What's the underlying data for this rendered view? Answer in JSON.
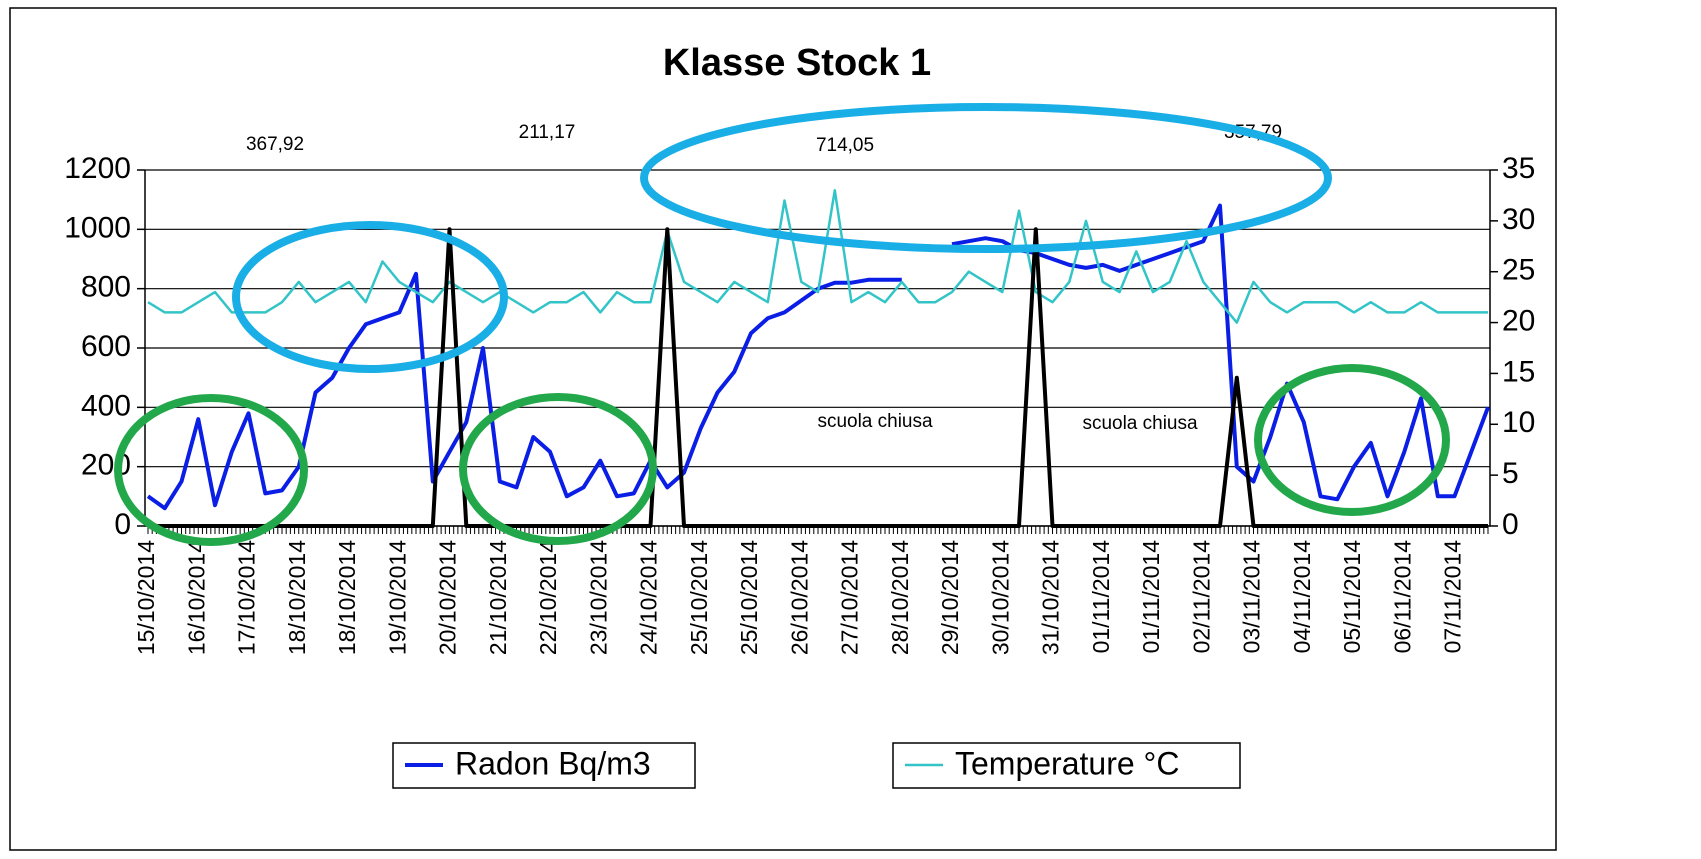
{
  "chart_data": {
    "type": "line",
    "title": "Klasse Stock 1",
    "categories": [
      "15/10/2014",
      null,
      null,
      "16/10/2014",
      null,
      null,
      "17/10/2014",
      null,
      null,
      "18/10/2014",
      null,
      null,
      "18/10/2014",
      null,
      null,
      "19/10/2014",
      null,
      null,
      "20/10/2014",
      null,
      null,
      "21/10/2014",
      null,
      null,
      "22/10/2014",
      null,
      null,
      "23/10/2014",
      null,
      null,
      "24/10/2014",
      null,
      null,
      "25/10/2014",
      null,
      null,
      "25/10/2014",
      null,
      null,
      "26/10/2014",
      null,
      null,
      "27/10/2014",
      null,
      null,
      "28/10/2014",
      null,
      null,
      "29/10/2014",
      null,
      null,
      "30/10/2014",
      null,
      null,
      "31/10/2014",
      null,
      null,
      "01/11/2014",
      null,
      null,
      "01/11/2014",
      null,
      null,
      "02/11/2014",
      null,
      null,
      "03/11/2014",
      null,
      null,
      "04/11/2014",
      null,
      null,
      "05/11/2014",
      null,
      null,
      "06/11/2014",
      null,
      null,
      "07/11/2014",
      null,
      null
    ],
    "series": [
      {
        "name": "Radon Bq/m3",
        "color": "#0a1ee6",
        "values": [
          100,
          60,
          150,
          360,
          70,
          250,
          380,
          110,
          120,
          200,
          450,
          500,
          600,
          680,
          700,
          720,
          850,
          150,
          250,
          350,
          600,
          150,
          130,
          300,
          250,
          100,
          130,
          220,
          100,
          110,
          220,
          130,
          180,
          330,
          450,
          520,
          650,
          700,
          720,
          760,
          800,
          820,
          820,
          830,
          830,
          830,
          null,
          null,
          950,
          960,
          970,
          960,
          930,
          920,
          900,
          880,
          870,
          880,
          860,
          880,
          900,
          920,
          940,
          960,
          1080,
          200,
          150,
          300,
          480,
          350,
          100,
          90,
          200,
          280,
          100,
          250,
          430,
          100,
          100,
          250,
          400
        ]
      },
      {
        "name": "Temperature °C",
        "color": "#33c4c8",
        "axis": "y2",
        "values": [
          22,
          21,
          21,
          22,
          23,
          21,
          21,
          21,
          22,
          24,
          22,
          23,
          24,
          22,
          26,
          24,
          23,
          22,
          24,
          23,
          22,
          23,
          22,
          21,
          22,
          22,
          23,
          21,
          23,
          22,
          22,
          29,
          24,
          23,
          22,
          24,
          23,
          22,
          32,
          24,
          23,
          33,
          22,
          23,
          22,
          24,
          22,
          22,
          23,
          25,
          24,
          23,
          31,
          23,
          22,
          24,
          30,
          24,
          23,
          27,
          23,
          24,
          28,
          24,
          22,
          20,
          24,
          22,
          21,
          22,
          22,
          22,
          21,
          22,
          21,
          21,
          22,
          21,
          21,
          21,
          21
        ]
      },
      {
        "color": "#000000",
        "values": [
          0,
          0,
          0,
          0,
          0,
          0,
          0,
          0,
          0,
          0,
          0,
          0,
          0,
          0,
          0,
          0,
          0,
          0,
          1000,
          0,
          0,
          0,
          0,
          0,
          0,
          0,
          0,
          0,
          0,
          0,
          0,
          1000,
          0,
          0,
          0,
          0,
          0,
          0,
          0,
          0,
          0,
          0,
          0,
          0,
          0,
          0,
          0,
          0,
          0,
          0,
          0,
          0,
          0,
          1000,
          0,
          0,
          0,
          0,
          0,
          0,
          0,
          0,
          0,
          0,
          0,
          500,
          0,
          0,
          0,
          0,
          0,
          0,
          0,
          0,
          0,
          0,
          0,
          0,
          0,
          0,
          0
        ]
      }
    ],
    "ylim": [
      0,
      1200
    ],
    "yticks": [
      0,
      200,
      400,
      600,
      800,
      1000,
      1200
    ],
    "y2lim": [
      0,
      35
    ],
    "y2ticks": [
      0,
      5,
      10,
      15,
      20,
      25,
      30,
      35
    ],
    "grid": true,
    "annotations": [
      "367,92",
      "211,17",
      "714,05",
      "357,79",
      "scuola chiusa",
      "scuola chiusa"
    ]
  }
}
